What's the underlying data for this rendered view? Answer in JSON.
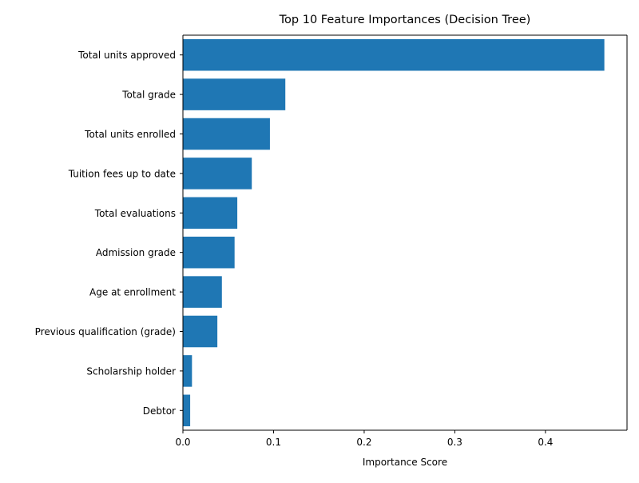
{
  "chart_data": {
    "type": "bar",
    "orientation": "horizontal",
    "title": "Top 10 Feature Importances (Decision Tree)",
    "xlabel": "Importance Score",
    "ylabel": "",
    "categories": [
      "Total units approved",
      "Total grade",
      "Total units enrolled",
      "Tuition fees up to date",
      "Total evaluations",
      "Admission grade",
      "Age at enrollment",
      "Previous qualification (grade)",
      "Scholarship holder",
      "Debtor"
    ],
    "values": [
      0.465,
      0.113,
      0.096,
      0.076,
      0.06,
      0.057,
      0.043,
      0.038,
      0.01,
      0.008
    ],
    "xlim": [
      0,
      0.49
    ],
    "xticks": [
      0.0,
      0.1,
      0.2,
      0.3,
      0.4
    ],
    "xtick_labels": [
      "0.0",
      "0.1",
      "0.2",
      "0.3",
      "0.4"
    ],
    "bar_color": "#1f77b4",
    "grid": false,
    "legend": "none"
  }
}
